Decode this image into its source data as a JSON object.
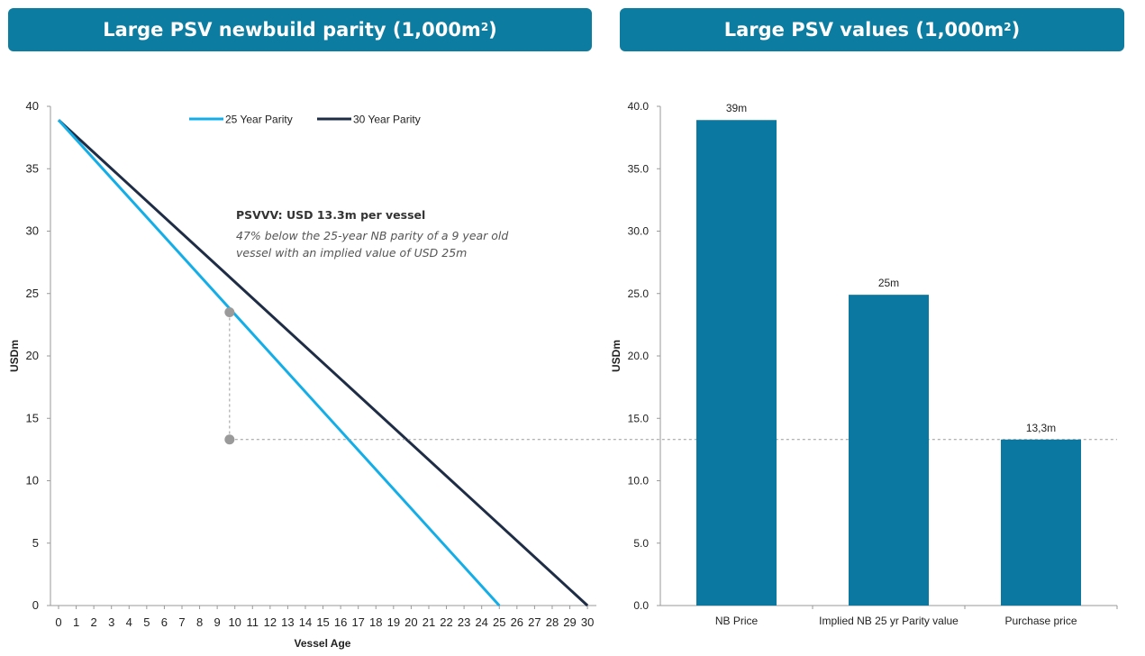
{
  "banners": {
    "left": {
      "text": "Large PSV newbuild parity (1,000m",
      "sup": "2",
      "close": ")"
    },
    "right": {
      "text": "Large PSV values (1,000m",
      "sup": "2",
      "close": ")"
    }
  },
  "colors": {
    "banner": "#0c7ca0",
    "parity_25": "#13aee8",
    "parity_30": "#1e2d45",
    "bars": "#0a78a0",
    "guide": "#999999"
  },
  "chart_data": [
    {
      "type": "line",
      "title": "Large PSV newbuild parity (1,000m2)",
      "xlabel": "Vessel Age",
      "ylabel": "USDm",
      "xlim": [
        0,
        30
      ],
      "ylim": [
        0,
        40
      ],
      "xticks": [
        "0",
        "1",
        "2",
        "3",
        "4",
        "5",
        "6",
        "7",
        "8",
        "9",
        "10",
        "11",
        "12",
        "13",
        "14",
        "15",
        "16",
        "17",
        "18",
        "19",
        "20",
        "21",
        "22",
        "23",
        "24",
        "25",
        "26",
        "27",
        "28",
        "29",
        "30"
      ],
      "yticks": [
        "0",
        "5",
        "10",
        "15",
        "20",
        "25",
        "30",
        "35",
        "40"
      ],
      "legend_position": "top",
      "series": [
        {
          "name": "25 Year Parity",
          "x": [
            0,
            25
          ],
          "y": [
            38.9,
            0
          ]
        },
        {
          "name": "30 Year Parity",
          "x": [
            0,
            30
          ],
          "y": [
            38.9,
            0
          ]
        }
      ],
      "markers": [
        {
          "x": 9.7,
          "y": 23.5
        },
        {
          "x": 9.7,
          "y": 13.3
        }
      ],
      "annotation": {
        "title": "PSVVV: USD 13.3m per vessel",
        "lines": [
          "47% below the 25-year NB parity of a 9 year old",
          "vessel with an implied value of USD 25m"
        ]
      }
    },
    {
      "type": "bar",
      "title": "Large PSV values (1,000m2)",
      "xlabel": "",
      "ylabel": "USDm",
      "ylim": [
        0,
        40
      ],
      "yticks": [
        "0.0",
        "5.0",
        "10.0",
        "15.0",
        "20.0",
        "25.0",
        "30.0",
        "35.0",
        "40.0"
      ],
      "categories": [
        "NB Price",
        "Implied NB 25 yr Parity value",
        "Purchase price"
      ],
      "values": [
        38.9,
        24.9,
        13.3
      ],
      "data_labels": [
        "39m",
        "25m",
        "13,3m"
      ],
      "reference_line": 13.3
    }
  ]
}
